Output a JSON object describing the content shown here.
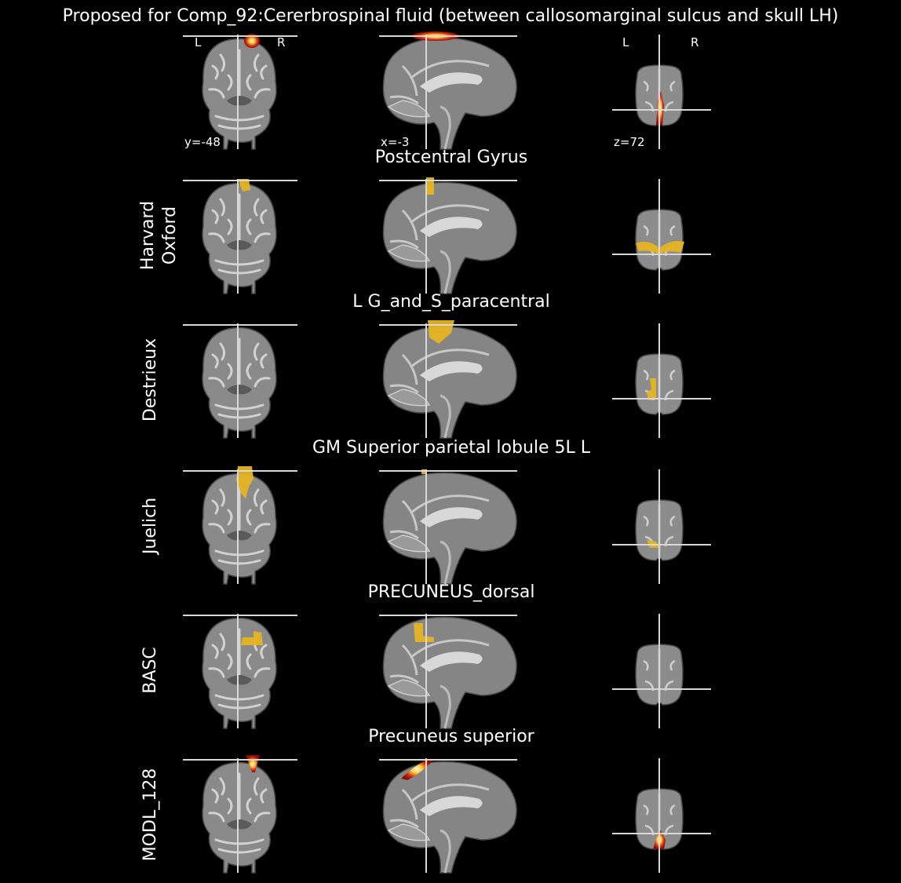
{
  "title": "Proposed for Comp_92:Cererbrospinal fluid (between callosomarginal sulcus and skull LH)",
  "orientation": {
    "left": "L",
    "right": "R"
  },
  "coords": {
    "coronal": "y=-48",
    "sagittal": "x=-3",
    "axial": "z=72"
  },
  "colors": {
    "atlas_region": "#e6b422",
    "background": "#000000",
    "crosshair": "#d8d8d8"
  },
  "rows": [
    {
      "label": "",
      "region": "",
      "overlay": "heat",
      "coronal_blob": "top-center",
      "sagittal_blob": "top-strip",
      "axial_blob": "posterior-wedge"
    },
    {
      "label": "Harvard\nOxford",
      "region": "Postcentral Gyrus",
      "overlay": "atlas",
      "coronal_blob": "top-left-small",
      "sagittal_blob": "top-small",
      "axial_blob": "wide-band"
    },
    {
      "label": "Destrieux",
      "region": "L G_and_S_paracentral",
      "overlay": "atlas",
      "coronal_blob": "none",
      "sagittal_blob": "top-large",
      "axial_blob": "left-column"
    },
    {
      "label": "Juelich",
      "region": "GM Superior parietal lobule 5L L",
      "overlay": "atlas",
      "coronal_blob": "top-left-column",
      "sagittal_blob": "tiny-dot",
      "axial_blob": "posterior-small"
    },
    {
      "label": "BASC",
      "region": "PRECUNEUS_dorsal",
      "overlay": "atlas",
      "coronal_blob": "mid-center",
      "sagittal_blob": "posterior-mid",
      "axial_blob": "none"
    },
    {
      "label": "MODL_128",
      "region": "Precuneus superior",
      "overlay": "heat",
      "coronal_blob": "top-center-v",
      "sagittal_blob": "top-posterior-heat",
      "axial_blob": "posterior-heat"
    }
  ]
}
